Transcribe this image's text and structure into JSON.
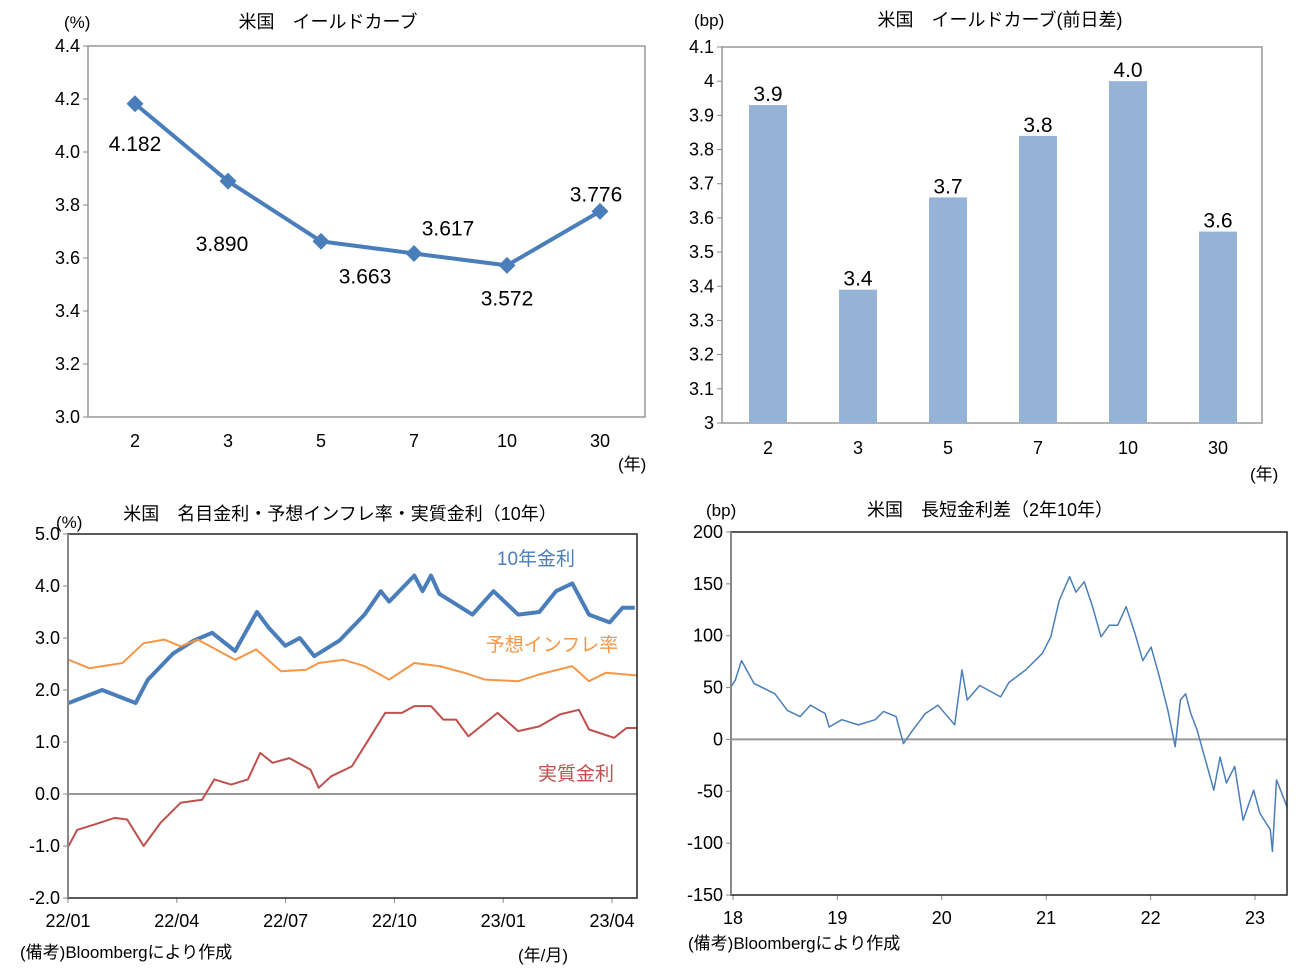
{
  "chart_data": [
    {
      "type": "line",
      "title": "米国　イールドカーブ",
      "ylabel": "(%)",
      "xlabel": "(年)",
      "categories": [
        "2",
        "3",
        "5",
        "7",
        "10",
        "30"
      ],
      "values": [
        4.182,
        3.89,
        3.663,
        3.617,
        3.572,
        3.776
      ],
      "data_labels": [
        "4.182",
        "3.890",
        "3.663",
        "3.617",
        "3.572",
        "3.776"
      ],
      "ylim": [
        3.0,
        4.4
      ],
      "yticks": [
        "3.0",
        "3.2",
        "3.4",
        "3.6",
        "3.8",
        "4.0",
        "4.2",
        "4.4"
      ],
      "color": "#4a7ebb",
      "marker": "diamond"
    },
    {
      "type": "bar",
      "title": "米国　イールドカーブ(前日差)",
      "ylabel": "(bp)",
      "xlabel": "(年)",
      "categories": [
        "2",
        "3",
        "5",
        "7",
        "10",
        "30"
      ],
      "values": [
        3.93,
        3.39,
        3.66,
        3.84,
        4.0,
        3.56
      ],
      "data_labels": [
        "3.9",
        "3.4",
        "3.7",
        "3.8",
        "4.0",
        "3.6"
      ],
      "ylim": [
        3,
        4.1
      ],
      "yticks": [
        "3",
        "3.1",
        "3.2",
        "3.3",
        "3.4",
        "3.5",
        "3.6",
        "3.7",
        "3.8",
        "3.9",
        "4",
        "4.1"
      ],
      "color": "#95b3d7"
    },
    {
      "type": "line",
      "title": "米国　名目金利・予想インフレ率・実質金利（10年）",
      "ylabel": "(%)",
      "xlabel": "(年/月)",
      "note": "(備考)Bloombergにより作成",
      "xticks": [
        "22/01",
        "22/04",
        "22/07",
        "22/10",
        "23/01",
        "23/04"
      ],
      "x_unit": "months since 22/01",
      "xlim": [
        0,
        15.66
      ],
      "ylim": [
        -2.0,
        5.0
      ],
      "yticks": [
        "-2.0",
        "-1.0",
        "0.0",
        "1.0",
        "2.0",
        "3.0",
        "4.0",
        "5.0"
      ],
      "series": [
        {
          "name": "10年金利",
          "color": "#4a7ebb",
          "x": [
            0.02,
            0.94,
            1.86,
            2.2,
            2.89,
            3.46,
            3.97,
            4.6,
            5.2,
            5.52,
            5.98,
            6.38,
            6.78,
            7.47,
            8.16,
            8.61,
            8.84,
            9.53,
            9.76,
            9.99,
            10.22,
            11.13,
            11.71,
            12.39,
            12.97,
            13.43,
            13.88,
            14.34,
            14.91,
            15.26,
            15.6
          ],
          "y": [
            1.75,
            2.0,
            1.75,
            2.2,
            2.7,
            2.95,
            3.1,
            2.75,
            3.5,
            3.2,
            2.85,
            3.0,
            2.65,
            2.95,
            3.45,
            3.9,
            3.7,
            4.2,
            3.9,
            4.2,
            3.85,
            3.45,
            3.9,
            3.45,
            3.5,
            3.9,
            4.05,
            3.45,
            3.3,
            3.58,
            3.58
          ]
        },
        {
          "name": "予想インフレ率",
          "color": "#f79646",
          "x": [
            0.02,
            0.59,
            1.5,
            2.08,
            2.65,
            3.1,
            3.57,
            4.26,
            4.6,
            5.18,
            5.86,
            6.55,
            6.9,
            7.58,
            8.16,
            8.84,
            9.53,
            10.22,
            10.91,
            11.48,
            12.39,
            12.97,
            13.88,
            14.34,
            14.8,
            15.66
          ],
          "y": [
            2.58,
            2.42,
            2.52,
            2.9,
            2.97,
            2.84,
            2.97,
            2.71,
            2.58,
            2.78,
            2.36,
            2.39,
            2.52,
            2.58,
            2.46,
            2.2,
            2.52,
            2.46,
            2.33,
            2.2,
            2.17,
            2.3,
            2.46,
            2.17,
            2.33,
            2.28
          ]
        },
        {
          "name": "実質金利",
          "color": "#c0504d",
          "x": [
            0.02,
            0.25,
            0.71,
            1.28,
            1.63,
            2.08,
            2.54,
            3.1,
            3.69,
            4.03,
            4.49,
            4.95,
            5.29,
            5.63,
            6.09,
            6.67,
            6.9,
            7.24,
            7.81,
            8.16,
            8.73,
            9.19,
            9.53,
            9.99,
            10.33,
            10.68,
            11.02,
            11.36,
            11.82,
            12.39,
            12.97,
            13.54,
            14.06,
            14.34,
            15.03,
            15.37,
            15.66
          ],
          "y": [
            -1.0,
            -0.69,
            -0.59,
            -0.46,
            -0.49,
            -1.0,
            -0.56,
            -0.17,
            -0.11,
            0.28,
            0.18,
            0.28,
            0.79,
            0.6,
            0.69,
            0.47,
            0.12,
            0.34,
            0.53,
            0.92,
            1.56,
            1.56,
            1.69,
            1.69,
            1.43,
            1.43,
            1.11,
            1.3,
            1.56,
            1.21,
            1.3,
            1.53,
            1.62,
            1.24,
            1.08,
            1.27,
            1.27
          ]
        }
      ]
    },
    {
      "type": "line",
      "title": "米国　長短金利差（2年10年）",
      "ylabel": "(bp)",
      "note": "(備考)Bloombergにより作成",
      "xticks": [
        "18",
        "19",
        "20",
        "21",
        "22",
        "23"
      ],
      "xlim": [
        18,
        23.32
      ],
      "ylim": [
        -150,
        200
      ],
      "yticks": [
        "-150",
        "-100",
        "-50",
        "0",
        "50",
        "100",
        "150",
        "200"
      ],
      "series": [
        {
          "name": "長短金利差",
          "color": "#4a7ebb",
          "x": [
            18.0,
            18.04,
            18.1,
            18.22,
            18.42,
            18.54,
            18.66,
            18.76,
            18.9,
            18.94,
            19.06,
            19.22,
            19.38,
            19.46,
            19.58,
            19.65,
            19.74,
            19.86,
            19.98,
            20.14,
            20.21,
            20.26,
            20.38,
            20.58,
            20.66,
            20.82,
            20.98,
            21.06,
            21.14,
            21.24,
            21.3,
            21.38,
            21.46,
            21.54,
            21.62,
            21.7,
            21.78,
            21.86,
            21.94,
            22.02,
            22.1,
            22.18,
            22.25,
            22.3,
            22.35,
            22.4,
            22.46,
            22.54,
            22.62,
            22.68,
            22.74,
            22.82,
            22.9,
            23.0,
            23.06,
            23.16,
            23.18,
            23.22,
            23.27,
            23.32
          ],
          "y": [
            50.7,
            57,
            76,
            54,
            44,
            28,
            22,
            33,
            25,
            12,
            19,
            14,
            19,
            27,
            22,
            -4,
            9,
            25,
            33,
            14,
            67,
            38,
            52,
            41,
            55,
            67,
            83,
            99,
            134,
            157,
            142,
            152,
            128,
            99,
            110,
            110,
            128,
            104,
            76,
            89,
            60,
            28,
            -7,
            38,
            44,
            25,
            9,
            -20,
            -49,
            -17,
            -42,
            -26,
            -78,
            -49,
            -71,
            -87,
            -108,
            -39,
            -52,
            -65
          ]
        }
      ]
    }
  ]
}
